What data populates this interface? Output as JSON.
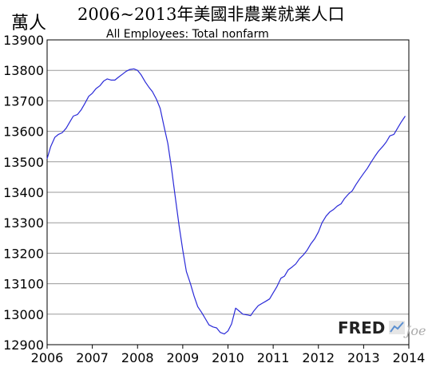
{
  "chart_data": {
    "type": "line",
    "title": "2006~2013年美國非農業就業人口",
    "subtitle": "All Employees: Total nonfarm",
    "ylabel": "萬人",
    "xlabel": "",
    "x_ticks": [
      "2006",
      "2007",
      "2008",
      "2009",
      "2010",
      "2011",
      "2012",
      "2013",
      "2014"
    ],
    "y_ticks": [
      "12900",
      "13000",
      "13100",
      "13200",
      "13300",
      "13400",
      "13500",
      "13600",
      "13700",
      "13800",
      "13900"
    ],
    "xlim": [
      2006,
      2014
    ],
    "ylim": [
      12900,
      13900
    ],
    "grid": true,
    "series": [
      {
        "color": "#2a2ad8",
        "x": [
          2006.0,
          2006.08,
          2006.17,
          2006.25,
          2006.33,
          2006.42,
          2006.5,
          2006.58,
          2006.67,
          2006.75,
          2006.83,
          2006.92,
          2007.0,
          2007.08,
          2007.17,
          2007.25,
          2007.33,
          2007.42,
          2007.5,
          2007.58,
          2007.67,
          2007.75,
          2007.83,
          2007.92,
          2008.0,
          2008.08,
          2008.17,
          2008.25,
          2008.33,
          2008.42,
          2008.5,
          2008.58,
          2008.67,
          2008.75,
          2008.83,
          2008.92,
          2009.0,
          2009.08,
          2009.17,
          2009.25,
          2009.33,
          2009.42,
          2009.5,
          2009.58,
          2009.67,
          2009.75,
          2009.83,
          2009.92,
          2010.0,
          2010.08,
          2010.17,
          2010.25,
          2010.33,
          2010.42,
          2010.5,
          2010.58,
          2010.67,
          2010.75,
          2010.83,
          2010.92,
          2011.0,
          2011.08,
          2011.17,
          2011.25,
          2011.33,
          2011.42,
          2011.5,
          2011.58,
          2011.67,
          2011.75,
          2011.83,
          2011.92,
          2012.0,
          2012.08,
          2012.17,
          2012.25,
          2012.33,
          2012.42,
          2012.5,
          2012.58,
          2012.67,
          2012.75,
          2012.83,
          2012.92,
          2013.0,
          2013.08,
          2013.17,
          2013.25,
          2013.33,
          2013.42,
          2013.5,
          2013.58,
          2013.67,
          2013.75,
          2013.83,
          2013.92
        ],
        "values": [
          13510,
          13550,
          13580,
          13590,
          13595,
          13610,
          13630,
          13650,
          13655,
          13670,
          13690,
          13715,
          13725,
          13740,
          13750,
          13765,
          13772,
          13768,
          13768,
          13778,
          13788,
          13797,
          13803,
          13805,
          13800,
          13785,
          13762,
          13745,
          13730,
          13705,
          13675,
          13620,
          13560,
          13480,
          13390,
          13290,
          13210,
          13140,
          13100,
          13060,
          13025,
          13005,
          12985,
          12965,
          12958,
          12955,
          12940,
          12935,
          12945,
          12968,
          13020,
          13010,
          13000,
          12998,
          12995,
          13012,
          13028,
          13035,
          13042,
          13050,
          13070,
          13090,
          13118,
          13125,
          13145,
          13155,
          13165,
          13182,
          13195,
          13210,
          13230,
          13248,
          13270,
          13300,
          13322,
          13335,
          13343,
          13355,
          13362,
          13380,
          13395,
          13405,
          13425,
          13445,
          13462,
          13478,
          13500,
          13518,
          13535,
          13550,
          13565,
          13585,
          13590,
          13610,
          13630,
          13650
        ]
      }
    ]
  },
  "watermark": {
    "brand": "FRED",
    "suffix": "Joe"
  }
}
